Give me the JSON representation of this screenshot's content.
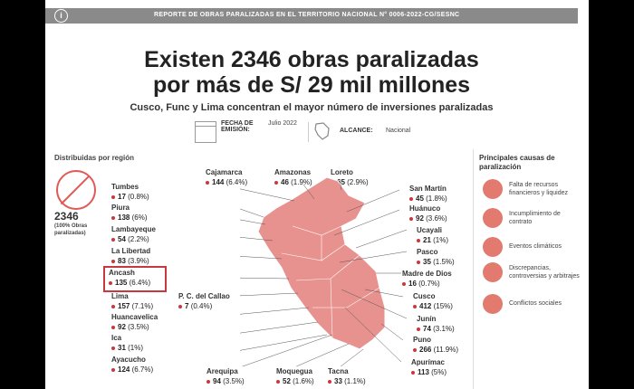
{
  "header": {
    "info_icon": "i",
    "report": "REPORTE DE OBRAS PARALIZADAS EN EL TERRITORIO NACIONAL N° 0006-2022-CG/SESNC"
  },
  "title_line1": "Existen 2346 obras paralizadas",
  "title_line2": "por más de S/ 29 mil millones",
  "subtitle": "Cusco, Func y Lima concentran el mayor número de inversiones paralizadas",
  "meta": {
    "fecha_label": "FECHA DE EMISIÓN:",
    "fecha_value": "Julio 2022",
    "alcance_label": "ALCANCE:",
    "alcance_value": "Nacional"
  },
  "distribution_title": "Distribuidas por región",
  "total": {
    "number": "2346",
    "label": "(100% Obras paralizadas)"
  },
  "regions": {
    "tumbes": {
      "name": "Tumbes",
      "count": "17",
      "pct": "(0.8%)"
    },
    "piura": {
      "name": "Piura",
      "count": "138",
      "pct": "(6%)"
    },
    "lambayeque": {
      "name": "Lambayeque",
      "count": "54",
      "pct": "(2.2%)"
    },
    "lalibertad": {
      "name": "La Libertad",
      "count": "83",
      "pct": "(3.9%)"
    },
    "ancash": {
      "name": "Ancash",
      "count": "135",
      "pct": "(6.4%)"
    },
    "lima": {
      "name": "Lima",
      "count": "157",
      "pct": "(7.1%)"
    },
    "callao": {
      "name": "P. C. del Callao",
      "count": "7",
      "pct": "(0.4%)"
    },
    "huancavelica": {
      "name": "Huancavelica",
      "count": "92",
      "pct": "(3.5%)"
    },
    "ica": {
      "name": "Ica",
      "count": "31",
      "pct": "(1%)"
    },
    "ayacucho": {
      "name": "Ayacucho",
      "count": "124",
      "pct": "(6.7%)"
    },
    "cajamarca": {
      "name": "Cajamarca",
      "count": "144",
      "pct": "(6.4%)"
    },
    "amazonas": {
      "name": "Amazonas",
      "count": "46",
      "pct": "(1.9%)"
    },
    "loreto": {
      "name": "Loreto",
      "count": "65",
      "pct": "(2.9%)"
    },
    "sanmartin": {
      "name": "San Martín",
      "count": "45",
      "pct": "(1.8%)"
    },
    "huanuco": {
      "name": "Huánuco",
      "count": "92",
      "pct": "(3.6%)"
    },
    "ucayali": {
      "name": "Ucayali",
      "count": "21",
      "pct": "(1%)"
    },
    "pasco": {
      "name": "Pasco",
      "count": "35",
      "pct": "(1.5%)"
    },
    "madrededios": {
      "name": "Madre de Dios",
      "count": "16",
      "pct": "(0.7%)"
    },
    "cusco": {
      "name": "Cusco",
      "count": "412",
      "pct": "(15%)"
    },
    "junin": {
      "name": "Junín",
      "count": "74",
      "pct": "(3.1%)"
    },
    "puno": {
      "name": "Puno",
      "count": "266",
      "pct": "(11.9%)"
    },
    "apurimac": {
      "name": "Apurímac",
      "count": "113",
      "pct": "(5%)"
    },
    "arequipa": {
      "name": "Arequipa",
      "count": "94",
      "pct": "(3.5%)"
    },
    "moquegua": {
      "name": "Moquegua",
      "count": "52",
      "pct": "(1.6%)"
    },
    "tacna": {
      "name": "Tacna",
      "count": "33",
      "pct": "(1.1%)"
    }
  },
  "causes_title": "Principales causas de paralización",
  "causes": [
    "Falta de recursos financieros y liquidez",
    "Incumplimiento de contrato",
    "Eventos climáticos",
    "Discrepancias, controversias y arbitrajes",
    "Conflictos sociales"
  ],
  "colors": {
    "accent": "#c8383c",
    "map": "#e8928f",
    "icon": "#e27a6f"
  }
}
